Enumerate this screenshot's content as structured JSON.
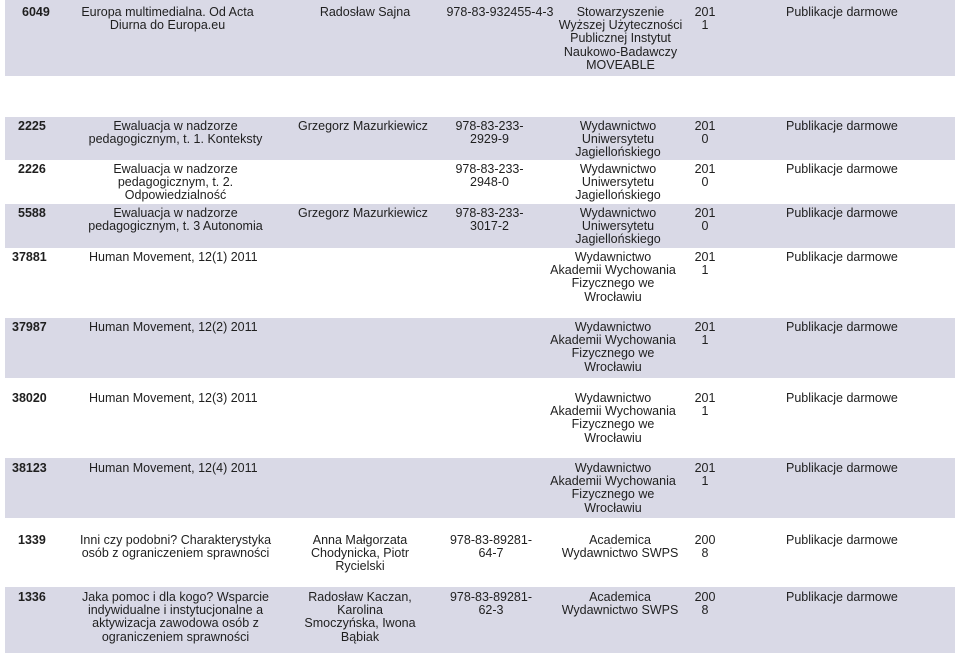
{
  "rows": [
    {
      "id": "6049",
      "title": "Europa multimedialna. Od Acta Diurna do Europa.eu",
      "author": "Radosław Sajna",
      "isbn": "978-83-932455-4-3",
      "publisher": "Stowarzyszenie Wyższej Użyteczności Publicznej Instytut Naukowo-Badawczy MOVEABLE",
      "year": "201 1",
      "category": "Publikacje darmowe"
    },
    {
      "id": "2225",
      "title": "Ewaluacja w nadzorze pedagogicznym, t. 1. Konteksty",
      "author": "Grzegorz Mazurkiewicz",
      "isbn": "978-83-233-2929-9",
      "publisher": "Wydawnictwo Uniwersytetu Jagiellońskiego",
      "year": "201 0",
      "category": "Publikacje darmowe"
    },
    {
      "id": "2226",
      "title": "Ewaluacja w nadzorze pedagogicznym, t. 2. Odpowiedzialność",
      "author": "",
      "isbn": "978-83-233-2948-0",
      "publisher": "Wydawnictwo Uniwersytetu Jagiellońskiego",
      "year": "201 0",
      "category": "Publikacje darmowe"
    },
    {
      "id": "5588",
      "title": "Ewaluacja w nadzorze pedagogicznym, t. 3 Autonomia",
      "author": "Grzegorz Mazurkiewicz",
      "isbn": "978-83-233-3017-2",
      "publisher": "Wydawnictwo Uniwersytetu Jagiellońskiego",
      "year": "201 0",
      "category": "Publikacje darmowe"
    },
    {
      "id": "37881",
      "title": "Human Movement, 12(1) 2011",
      "author": "",
      "isbn": "",
      "publisher": "Wydawnictwo Akademii Wychowania Fizycznego we Wrocławiu",
      "year": "201 1",
      "category": "Publikacje darmowe"
    },
    {
      "id": "37987",
      "title": "Human Movement, 12(2) 2011",
      "author": "",
      "isbn": "",
      "publisher": "Wydawnictwo Akademii Wychowania Fizycznego we Wrocławiu",
      "year": "201 1",
      "category": "Publikacje darmowe"
    },
    {
      "id": "38020",
      "title": "Human Movement, 12(3) 2011",
      "author": "",
      "isbn": "",
      "publisher": "Wydawnictwo Akademii Wychowania Fizycznego we Wrocławiu",
      "year": "201 1",
      "category": "Publikacje darmowe"
    },
    {
      "id": "38123",
      "title": "Human Movement, 12(4) 2011",
      "author": "",
      "isbn": "",
      "publisher": "Wydawnictwo Akademii Wychowania Fizycznego we Wrocławiu",
      "year": "201 1",
      "category": "Publikacje darmowe"
    },
    {
      "id": "1339",
      "title": "Inni czy podobni? Charakterystyka osób z ograniczeniem sprawności",
      "author": "Anna Małgorzata Chodynicka, Piotr Rycielski",
      "isbn": "978-83-89281-64-7",
      "publisher": "Academica Wydawnictwo SWPS",
      "year": "200 8",
      "category": "Publikacje darmowe"
    },
    {
      "id": "1336",
      "title": "Jaka pomoc i dla kogo? Wsparcie indywidualne i instytucjonalne a aktywizacja zawodowa osób z ograniczeniem sprawności",
      "author": "Radosław Kaczan, Karolina Smoczyńska, Iwona Bąbiak",
      "isbn": "978-83-89281-62-3",
      "publisher": "Academica Wydawnictwo SWPS",
      "year": "200 8",
      "category": "Publikacje darmowe"
    }
  ]
}
